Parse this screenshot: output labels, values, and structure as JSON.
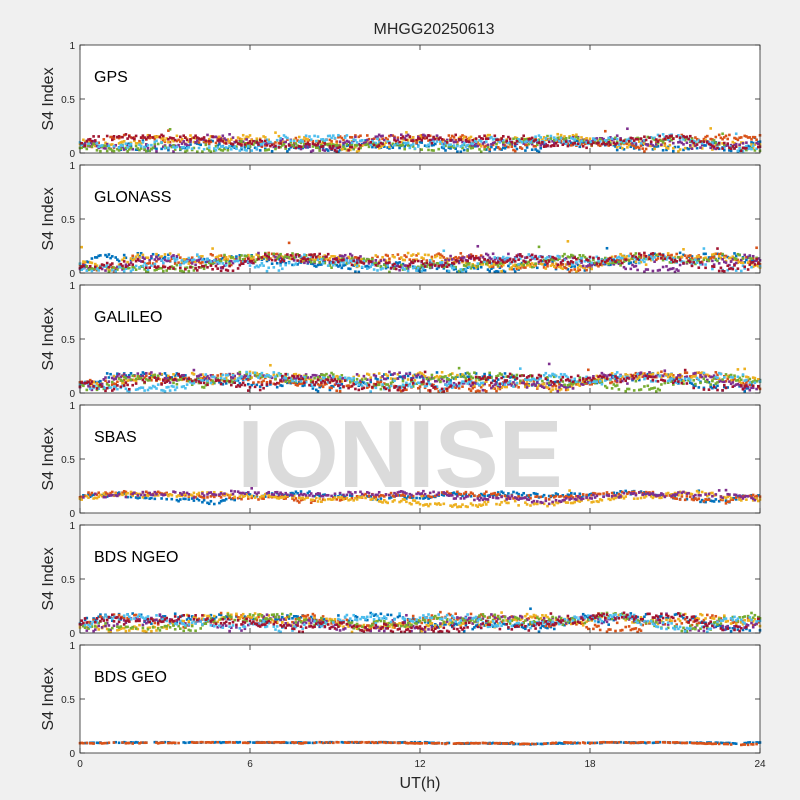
{
  "chart_data": {
    "type": "scatter",
    "title": "MHGG20250613",
    "xlabel": "UT(h)",
    "ylabel": "S4 Index",
    "xlim": [
      0,
      24
    ],
    "ylim": [
      0,
      1
    ],
    "xticks": [
      "0",
      "6",
      "12",
      "18",
      "24"
    ],
    "yticks": [
      "0",
      "0.5",
      "1"
    ],
    "watermark": "IONISE",
    "series_colors": [
      "#0072BD",
      "#D95319",
      "#EDB120",
      "#7E2F8E",
      "#77AC30",
      "#4DBEEE",
      "#A2142F"
    ],
    "panels": [
      {
        "label": "GPS",
        "s4_base": 0.07,
        "s4_spread": 0.08,
        "s4_peak": 0.25,
        "series_count": 7,
        "span": [
          0,
          24
        ]
      },
      {
        "label": "GLONASS",
        "s4_base": 0.07,
        "s4_spread": 0.09,
        "s4_peak": 0.33,
        "series_count": 7,
        "span": [
          0,
          24
        ]
      },
      {
        "label": "GALILEO",
        "s4_base": 0.08,
        "s4_spread": 0.09,
        "s4_peak": 0.3,
        "series_count": 7,
        "span": [
          0,
          24
        ]
      },
      {
        "label": "SBAS",
        "s4_base": 0.14,
        "s4_spread": 0.05,
        "s4_peak": 0.25,
        "series_count": 4,
        "span": [
          0,
          24
        ]
      },
      {
        "label": "BDS NGEO",
        "s4_base": 0.07,
        "s4_spread": 0.09,
        "s4_peak": 0.25,
        "series_count": 7,
        "span": [
          0,
          24
        ]
      },
      {
        "label": "BDS GEO",
        "s4_base": 0.09,
        "s4_spread": 0.01,
        "s4_peak": 0.1,
        "series_count": 2,
        "span": [
          0,
          24
        ]
      }
    ]
  }
}
